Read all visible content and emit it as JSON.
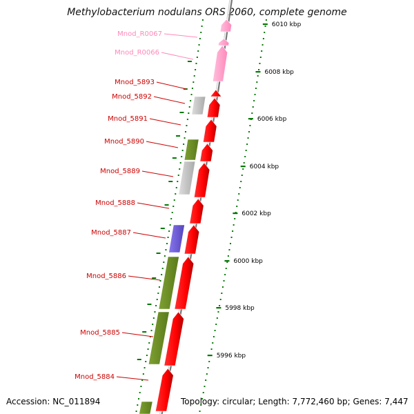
{
  "title": "Methylobacterium nodulans ORS 2060, complete genome",
  "accession": "Accession: NC_011894",
  "topology": "Topology: circular; Length: 7,772,460 bp; Genes: 7,447",
  "colors": {
    "forward_gene": "#ff0000",
    "rna_gene": "#ff99cc",
    "grey_gene": "#c0c0c0",
    "olive_gene": "#6b8e23",
    "purple_gene": "#6a5acd",
    "label_red": "#cc0000",
    "label_pink": "#ff88bb",
    "tick_green": "#007700",
    "backbone": "#999999"
  },
  "scale_ticks": [
    {
      "kbp": 6010,
      "label": "6010 kbp"
    },
    {
      "kbp": 6008,
      "label": "6008 kbp"
    },
    {
      "kbp": 6006,
      "label": "6006 kbp"
    },
    {
      "kbp": 6004,
      "label": "6004 kbp"
    },
    {
      "kbp": 6002,
      "label": "6002 kbp"
    },
    {
      "kbp": 6000,
      "label": "6000 kbp"
    },
    {
      "kbp": 5998,
      "label": "5998 kbp"
    },
    {
      "kbp": 5996,
      "label": "5996 kbp"
    }
  ],
  "gene_labels": [
    {
      "name": "Mnod_R0067",
      "kind": "rna"
    },
    {
      "name": "Mnod_R0066",
      "kind": "rna"
    },
    {
      "name": "Mnod_5893",
      "kind": "cds"
    },
    {
      "name": "Mnod_5892",
      "kind": "cds"
    },
    {
      "name": "Mnod_5891",
      "kind": "cds"
    },
    {
      "name": "Mnod_5890",
      "kind": "cds"
    },
    {
      "name": "Mnod_5889",
      "kind": "cds"
    },
    {
      "name": "Mnod_5888",
      "kind": "cds"
    },
    {
      "name": "Mnod_5887",
      "kind": "cds"
    },
    {
      "name": "Mnod_5886",
      "kind": "cds"
    },
    {
      "name": "Mnod_5885",
      "kind": "cds"
    },
    {
      "name": "Mnod_5884",
      "kind": "cds"
    }
  ]
}
